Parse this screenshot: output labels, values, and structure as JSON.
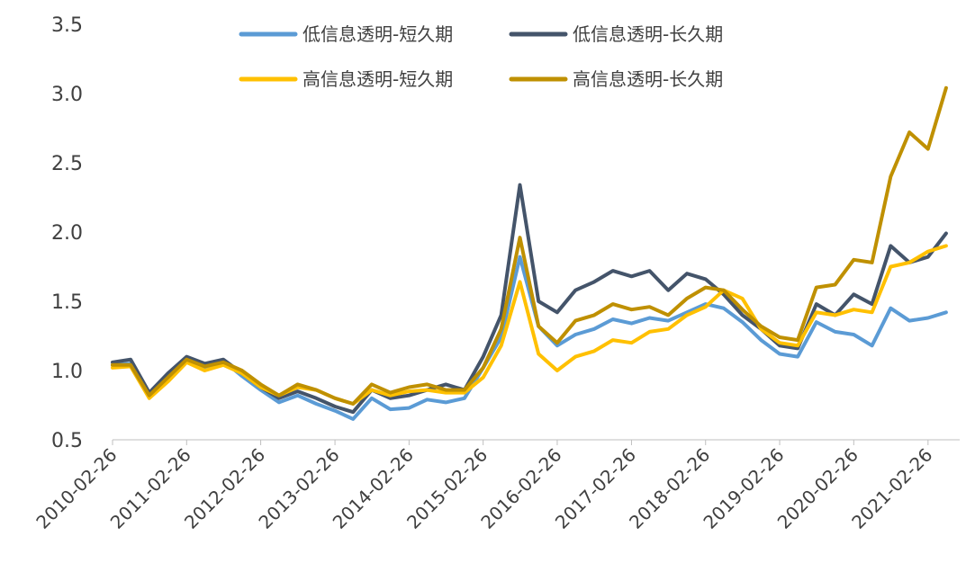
{
  "chart_data": {
    "type": "line",
    "title": "",
    "xlabel": "",
    "ylabel": "",
    "ylim": [
      0.5,
      3.5
    ],
    "y_ticks": [
      "0.5",
      "1.0",
      "1.5",
      "2.0",
      "2.5",
      "3.0",
      "3.5"
    ],
    "x_ticks": [
      "2010-02-26",
      "2011-02-26",
      "2012-02-26",
      "2013-02-26",
      "2014-02-26",
      "2015-02-26",
      "2016-02-26",
      "2017-02-26",
      "2018-02-26",
      "2019-02-26",
      "2020-02-26",
      "2021-02-26"
    ],
    "grid": false,
    "legend_position": "top-right",
    "series": [
      {
        "name": "低信息透明-短久期",
        "color": "#5B9BD5",
        "points": [
          [
            "2010-02-26",
            1.04
          ],
          [
            "2010-05-26",
            1.05
          ],
          [
            "2010-08-26",
            0.82
          ],
          [
            "2010-11-26",
            0.95
          ],
          [
            "2011-02-26",
            1.08
          ],
          [
            "2011-05-26",
            1.02
          ],
          [
            "2011-08-26",
            1.07
          ],
          [
            "2011-11-26",
            0.96
          ],
          [
            "2012-02-26",
            0.86
          ],
          [
            "2012-05-26",
            0.77
          ],
          [
            "2012-08-26",
            0.82
          ],
          [
            "2012-11-26",
            0.76
          ],
          [
            "2013-02-26",
            0.71
          ],
          [
            "2013-05-26",
            0.65
          ],
          [
            "2013-08-26",
            0.8
          ],
          [
            "2013-11-26",
            0.72
          ],
          [
            "2014-02-26",
            0.73
          ],
          [
            "2014-05-26",
            0.79
          ],
          [
            "2014-08-26",
            0.77
          ],
          [
            "2014-11-26",
            0.8
          ],
          [
            "2015-02-26",
            1.02
          ],
          [
            "2015-05-26",
            1.24
          ],
          [
            "2015-08-26",
            1.82
          ],
          [
            "2015-11-26",
            1.32
          ],
          [
            "2016-02-26",
            1.18
          ],
          [
            "2016-05-26",
            1.26
          ],
          [
            "2016-08-26",
            1.3
          ],
          [
            "2016-11-26",
            1.37
          ],
          [
            "2017-02-26",
            1.34
          ],
          [
            "2017-05-26",
            1.38
          ],
          [
            "2017-08-26",
            1.36
          ],
          [
            "2017-11-26",
            1.42
          ],
          [
            "2018-02-26",
            1.48
          ],
          [
            "2018-05-26",
            1.45
          ],
          [
            "2018-08-26",
            1.35
          ],
          [
            "2018-11-26",
            1.22
          ],
          [
            "2019-02-26",
            1.12
          ],
          [
            "2019-05-26",
            1.1
          ],
          [
            "2019-08-26",
            1.35
          ],
          [
            "2019-11-26",
            1.28
          ],
          [
            "2020-02-26",
            1.26
          ],
          [
            "2020-05-26",
            1.18
          ],
          [
            "2020-08-26",
            1.45
          ],
          [
            "2020-11-26",
            1.36
          ],
          [
            "2021-02-26",
            1.38
          ],
          [
            "2021-05-26",
            1.42
          ]
        ]
      },
      {
        "name": "低信息透明-长久期",
        "color": "#44546A",
        "points": [
          [
            "2010-02-26",
            1.06
          ],
          [
            "2010-05-26",
            1.08
          ],
          [
            "2010-08-26",
            0.84
          ],
          [
            "2010-11-26",
            0.98
          ],
          [
            "2011-02-26",
            1.1
          ],
          [
            "2011-05-26",
            1.05
          ],
          [
            "2011-08-26",
            1.08
          ],
          [
            "2011-11-26",
            0.98
          ],
          [
            "2012-02-26",
            0.88
          ],
          [
            "2012-05-26",
            0.8
          ],
          [
            "2012-08-26",
            0.85
          ],
          [
            "2012-11-26",
            0.8
          ],
          [
            "2013-02-26",
            0.74
          ],
          [
            "2013-05-26",
            0.7
          ],
          [
            "2013-08-26",
            0.86
          ],
          [
            "2013-11-26",
            0.8
          ],
          [
            "2014-02-26",
            0.82
          ],
          [
            "2014-05-26",
            0.86
          ],
          [
            "2014-08-26",
            0.9
          ],
          [
            "2014-11-26",
            0.86
          ],
          [
            "2015-02-26",
            1.1
          ],
          [
            "2015-05-26",
            1.4
          ],
          [
            "2015-08-26",
            2.34
          ],
          [
            "2015-11-26",
            1.5
          ],
          [
            "2016-02-26",
            1.42
          ],
          [
            "2016-05-26",
            1.58
          ],
          [
            "2016-08-26",
            1.64
          ],
          [
            "2016-11-26",
            1.72
          ],
          [
            "2017-02-26",
            1.68
          ],
          [
            "2017-05-26",
            1.72
          ],
          [
            "2017-08-26",
            1.58
          ],
          [
            "2017-11-26",
            1.7
          ],
          [
            "2018-02-26",
            1.66
          ],
          [
            "2018-05-26",
            1.55
          ],
          [
            "2018-08-26",
            1.4
          ],
          [
            "2018-11-26",
            1.3
          ],
          [
            "2019-02-26",
            1.18
          ],
          [
            "2019-05-26",
            1.16
          ],
          [
            "2019-08-26",
            1.48
          ],
          [
            "2019-11-26",
            1.4
          ],
          [
            "2020-02-26",
            1.55
          ],
          [
            "2020-05-26",
            1.48
          ],
          [
            "2020-08-26",
            1.9
          ],
          [
            "2020-11-26",
            1.78
          ],
          [
            "2021-02-26",
            1.82
          ],
          [
            "2021-05-26",
            1.99
          ]
        ]
      },
      {
        "name": "高信息透明-短久期",
        "color": "#FFC000",
        "points": [
          [
            "2010-02-26",
            1.02
          ],
          [
            "2010-05-26",
            1.03
          ],
          [
            "2010-08-26",
            0.8
          ],
          [
            "2010-11-26",
            0.92
          ],
          [
            "2011-02-26",
            1.06
          ],
          [
            "2011-05-26",
            1.0
          ],
          [
            "2011-08-26",
            1.04
          ],
          [
            "2011-11-26",
            0.98
          ],
          [
            "2012-02-26",
            0.88
          ],
          [
            "2012-05-26",
            0.82
          ],
          [
            "2012-08-26",
            0.88
          ],
          [
            "2012-11-26",
            0.86
          ],
          [
            "2013-02-26",
            0.8
          ],
          [
            "2013-05-26",
            0.76
          ],
          [
            "2013-08-26",
            0.86
          ],
          [
            "2013-11-26",
            0.82
          ],
          [
            "2014-02-26",
            0.85
          ],
          [
            "2014-05-26",
            0.86
          ],
          [
            "2014-08-26",
            0.84
          ],
          [
            "2014-11-26",
            0.84
          ],
          [
            "2015-02-26",
            0.95
          ],
          [
            "2015-05-26",
            1.18
          ],
          [
            "2015-08-26",
            1.64
          ],
          [
            "2015-11-26",
            1.12
          ],
          [
            "2016-02-26",
            1.0
          ],
          [
            "2016-05-26",
            1.1
          ],
          [
            "2016-08-26",
            1.14
          ],
          [
            "2016-11-26",
            1.22
          ],
          [
            "2017-02-26",
            1.2
          ],
          [
            "2017-05-26",
            1.28
          ],
          [
            "2017-08-26",
            1.3
          ],
          [
            "2017-11-26",
            1.4
          ],
          [
            "2018-02-26",
            1.46
          ],
          [
            "2018-05-26",
            1.58
          ],
          [
            "2018-08-26",
            1.52
          ],
          [
            "2018-11-26",
            1.3
          ],
          [
            "2019-02-26",
            1.2
          ],
          [
            "2019-05-26",
            1.18
          ],
          [
            "2019-08-26",
            1.42
          ],
          [
            "2019-11-26",
            1.4
          ],
          [
            "2020-02-26",
            1.44
          ],
          [
            "2020-05-26",
            1.42
          ],
          [
            "2020-08-26",
            1.75
          ],
          [
            "2020-11-26",
            1.78
          ],
          [
            "2021-02-26",
            1.86
          ],
          [
            "2021-05-26",
            1.9
          ]
        ]
      },
      {
        "name": "高信息透明-长久期",
        "color": "#BF9000",
        "points": [
          [
            "2010-02-26",
            1.04
          ],
          [
            "2010-05-26",
            1.04
          ],
          [
            "2010-08-26",
            0.82
          ],
          [
            "2010-11-26",
            0.95
          ],
          [
            "2011-02-26",
            1.08
          ],
          [
            "2011-05-26",
            1.03
          ],
          [
            "2011-08-26",
            1.06
          ],
          [
            "2011-11-26",
            1.0
          ],
          [
            "2012-02-26",
            0.9
          ],
          [
            "2012-05-26",
            0.82
          ],
          [
            "2012-08-26",
            0.9
          ],
          [
            "2012-11-26",
            0.86
          ],
          [
            "2013-02-26",
            0.8
          ],
          [
            "2013-05-26",
            0.76
          ],
          [
            "2013-08-26",
            0.9
          ],
          [
            "2013-11-26",
            0.84
          ],
          [
            "2014-02-26",
            0.88
          ],
          [
            "2014-05-26",
            0.9
          ],
          [
            "2014-08-26",
            0.86
          ],
          [
            "2014-11-26",
            0.86
          ],
          [
            "2015-02-26",
            1.02
          ],
          [
            "2015-05-26",
            1.3
          ],
          [
            "2015-08-26",
            1.96
          ],
          [
            "2015-11-26",
            1.32
          ],
          [
            "2016-02-26",
            1.2
          ],
          [
            "2016-05-26",
            1.36
          ],
          [
            "2016-08-26",
            1.4
          ],
          [
            "2016-11-26",
            1.48
          ],
          [
            "2017-02-26",
            1.44
          ],
          [
            "2017-05-26",
            1.46
          ],
          [
            "2017-08-26",
            1.4
          ],
          [
            "2017-11-26",
            1.52
          ],
          [
            "2018-02-26",
            1.6
          ],
          [
            "2018-05-26",
            1.58
          ],
          [
            "2018-08-26",
            1.44
          ],
          [
            "2018-11-26",
            1.32
          ],
          [
            "2019-02-26",
            1.24
          ],
          [
            "2019-05-26",
            1.22
          ],
          [
            "2019-08-26",
            1.6
          ],
          [
            "2019-11-26",
            1.62
          ],
          [
            "2020-02-26",
            1.8
          ],
          [
            "2020-05-26",
            1.78
          ],
          [
            "2020-08-26",
            2.4
          ],
          [
            "2020-11-26",
            2.72
          ],
          [
            "2021-02-26",
            2.6
          ],
          [
            "2021-05-26",
            3.04
          ]
        ]
      }
    ]
  }
}
